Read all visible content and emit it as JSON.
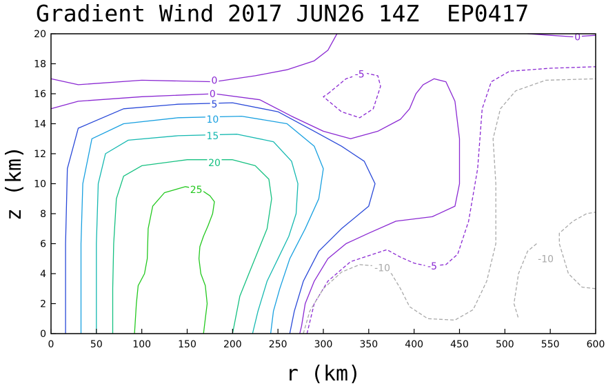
{
  "chart_data": {
    "type": "contour",
    "title": "Gradient Wind 2017 JUN26 14Z  EP0417",
    "xlabel": "r (km)",
    "ylabel": "z (km)",
    "xlim": [
      0,
      600
    ],
    "ylim": [
      0,
      20
    ],
    "x_ticks": [
      "0",
      "50",
      "100",
      "150",
      "200",
      "250",
      "300",
      "350",
      "400",
      "450",
      "500",
      "550",
      "600"
    ],
    "y_ticks": [
      "0",
      "2",
      "4",
      "6",
      "8",
      "10",
      "12",
      "14",
      "16",
      "18",
      "20"
    ],
    "grid": false,
    "contours": [
      {
        "level": "25",
        "color": "#22c81e",
        "dashed": false,
        "labels": [
          {
            "x": 160,
            "y": 9.6
          }
        ],
        "points": [
          [
            92,
            0
          ],
          [
            94,
            2
          ],
          [
            96,
            3.2
          ],
          [
            103,
            4
          ],
          [
            106,
            5
          ],
          [
            107,
            7
          ],
          [
            112,
            8.5
          ],
          [
            125,
            9.4
          ],
          [
            148,
            9.8
          ],
          [
            165,
            9.6
          ],
          [
            175,
            9.2
          ],
          [
            180,
            8.8
          ],
          [
            178,
            8
          ],
          [
            173,
            7.2
          ],
          [
            168,
            6.5
          ],
          [
            164,
            5.8
          ],
          [
            163,
            5
          ],
          [
            165,
            4
          ],
          [
            170,
            3.2
          ],
          [
            172,
            2
          ],
          [
            170,
            1
          ],
          [
            168,
            0
          ]
        ]
      },
      {
        "level": "20",
        "color": "#14c080",
        "dashed": false,
        "labels": [
          {
            "x": 180,
            "y": 11.4
          }
        ],
        "points": [
          [
            68,
            0
          ],
          [
            68,
            3
          ],
          [
            69,
            6
          ],
          [
            72,
            9
          ],
          [
            80,
            10.5
          ],
          [
            100,
            11.2
          ],
          [
            150,
            11.6
          ],
          [
            200,
            11.6
          ],
          [
            225,
            11.2
          ],
          [
            240,
            10.3
          ],
          [
            243,
            9
          ],
          [
            238,
            7
          ],
          [
            228,
            5.5
          ],
          [
            218,
            4
          ],
          [
            208,
            2.5
          ],
          [
            200,
            0
          ]
        ]
      },
      {
        "level": "15",
        "color": "#14b8b0",
        "dashed": false,
        "labels": [
          {
            "x": 178,
            "y": 13.2
          }
        ],
        "points": [
          [
            50,
            0
          ],
          [
            50,
            6
          ],
          [
            52,
            10
          ],
          [
            60,
            12
          ],
          [
            85,
            12.9
          ],
          [
            140,
            13.2
          ],
          [
            205,
            13.3
          ],
          [
            245,
            12.8
          ],
          [
            265,
            11.5
          ],
          [
            272,
            10
          ],
          [
            270,
            8
          ],
          [
            262,
            6.5
          ],
          [
            250,
            5
          ],
          [
            238,
            3.5
          ],
          [
            228,
            1.5
          ],
          [
            222,
            0
          ]
        ]
      },
      {
        "level": "10",
        "color": "#18a0e0",
        "dashed": false,
        "labels": [
          {
            "x": 178,
            "y": 14.3
          }
        ],
        "points": [
          [
            33,
            0
          ],
          [
            33,
            6
          ],
          [
            35,
            10
          ],
          [
            45,
            13
          ],
          [
            80,
            14
          ],
          [
            140,
            14.4
          ],
          [
            210,
            14.5
          ],
          [
            260,
            14
          ],
          [
            290,
            12.5
          ],
          [
            300,
            11
          ],
          [
            295,
            9
          ],
          [
            280,
            7
          ],
          [
            263,
            5
          ],
          [
            252,
            3
          ],
          [
            245,
            1.5
          ],
          [
            242,
            0
          ]
        ]
      },
      {
        "level": "5",
        "color": "#2848d8",
        "dashed": false,
        "labels": [
          {
            "x": 180,
            "y": 15.3
          }
        ],
        "points": [
          [
            16,
            0
          ],
          [
            16,
            6
          ],
          [
            18,
            11
          ],
          [
            30,
            13.7
          ],
          [
            80,
            15
          ],
          [
            140,
            15.3
          ],
          [
            200,
            15.4
          ],
          [
            250,
            14.8
          ],
          [
            290,
            13.5
          ],
          [
            320,
            12.5
          ],
          [
            345,
            11.5
          ],
          [
            357,
            10
          ],
          [
            350,
            8.5
          ],
          [
            320,
            7
          ],
          [
            295,
            5.5
          ],
          [
            278,
            3.5
          ],
          [
            268,
            1.5
          ],
          [
            263,
            0
          ]
        ]
      },
      {
        "level": "0",
        "color": "#8a28d2",
        "dashed": false,
        "labels": [
          {
            "x": 178,
            "y": 16.0
          }
        ],
        "points": [
          [
            0,
            15
          ],
          [
            30,
            15.5
          ],
          [
            100,
            15.8
          ],
          [
            180,
            16
          ],
          [
            230,
            15.6
          ],
          [
            265,
            14.5
          ],
          [
            300,
            13.5
          ],
          [
            330,
            13
          ],
          [
            360,
            13.5
          ],
          [
            385,
            14.3
          ],
          [
            395,
            15
          ],
          [
            402,
            16
          ],
          [
            410,
            16.6
          ],
          [
            422,
            17
          ],
          [
            435,
            16.8
          ],
          [
            445,
            15.5
          ],
          [
            450,
            13
          ],
          [
            450,
            10
          ],
          [
            445,
            8.5
          ],
          [
            420,
            7.8
          ],
          [
            380,
            7.5
          ],
          [
            350,
            6.7
          ],
          [
            325,
            6
          ],
          [
            305,
            5
          ],
          [
            290,
            3.5
          ],
          [
            280,
            2
          ],
          [
            276,
            0.5
          ],
          [
            274,
            0
          ]
        ]
      },
      {
        "level": "0",
        "color": "#8a28d2",
        "dashed": false,
        "labels": [
          {
            "x": 180,
            "y": 16.9
          }
        ],
        "points": [
          [
            0,
            17
          ],
          [
            30,
            16.6
          ],
          [
            100,
            16.9
          ],
          [
            180,
            16.8
          ],
          [
            225,
            17.2
          ],
          [
            260,
            17.6
          ],
          [
            290,
            18.2
          ],
          [
            305,
            18.9
          ],
          [
            315,
            20
          ]
        ]
      },
      {
        "level": "0",
        "color": "#8a28d2",
        "dashed": false,
        "labels": [
          {
            "x": 580,
            "y": 19.8
          }
        ],
        "points": [
          [
            525,
            20
          ],
          [
            550,
            19.9
          ],
          [
            575,
            19.8
          ],
          [
            600,
            19.9
          ]
        ]
      },
      {
        "level": "-5",
        "color": "#8a28d2",
        "dashed": true,
        "labels": [
          {
            "x": 340,
            "y": 17.3
          }
        ],
        "points": [
          [
            305,
            16
          ],
          [
            325,
            17
          ],
          [
            345,
            17.4
          ],
          [
            360,
            17.2
          ],
          [
            363,
            16.5
          ],
          [
            355,
            15
          ],
          [
            340,
            14.4
          ],
          [
            320,
            14.8
          ],
          [
            300,
            15.8
          ],
          [
            305,
            16
          ]
        ]
      },
      {
        "level": "-5",
        "color": "#8a28d2",
        "dashed": true,
        "labels": [
          {
            "x": 420,
            "y": 4.5
          }
        ],
        "points": [
          [
            282,
            0
          ],
          [
            290,
            2
          ],
          [
            305,
            3.5
          ],
          [
            330,
            4.8
          ],
          [
            370,
            5.6
          ],
          [
            385,
            5.1
          ],
          [
            400,
            4.7
          ],
          [
            415,
            4.5
          ],
          [
            435,
            4.6
          ],
          [
            448,
            5.3
          ],
          [
            460,
            7.5
          ],
          [
            470,
            11
          ],
          [
            475,
            15
          ],
          [
            485,
            16.8
          ],
          [
            505,
            17.5
          ],
          [
            550,
            17.7
          ],
          [
            600,
            17.8
          ]
        ]
      },
      {
        "level": "-10",
        "color": "#a8a8a8",
        "dashed": true,
        "labels": [
          {
            "x": 365,
            "y": 4.4
          }
        ],
        "points": [
          [
            278,
            0
          ],
          [
            285,
            1.5
          ],
          [
            300,
            3
          ],
          [
            320,
            4.1
          ],
          [
            340,
            4.6
          ],
          [
            360,
            4.5
          ],
          [
            375,
            4
          ],
          [
            385,
            3
          ],
          [
            395,
            1.8
          ],
          [
            415,
            1
          ],
          [
            445,
            0.9
          ],
          [
            465,
            1.6
          ],
          [
            480,
            3.5
          ],
          [
            490,
            6
          ],
          [
            490,
            10
          ],
          [
            487,
            13
          ],
          [
            495,
            15
          ],
          [
            512,
            16.2
          ],
          [
            545,
            16.9
          ],
          [
            600,
            17
          ]
        ]
      },
      {
        "level": "-10",
        "color": "#a8a8a8",
        "dashed": true,
        "labels": [
          {
            "x": 545,
            "y": 5.0
          }
        ],
        "points": [
          [
            600,
            3
          ],
          [
            585,
            3.1
          ],
          [
            570,
            4
          ],
          [
            560,
            6
          ],
          [
            560,
            6.7
          ],
          [
            575,
            7.5
          ],
          [
            590,
            8
          ],
          [
            600,
            8.1
          ]
        ]
      },
      {
        "level": "-10",
        "color": "#a8a8a8",
        "dashed": true,
        "labels": [],
        "points": [
          [
            535,
            6
          ],
          [
            525,
            5.5
          ],
          [
            515,
            4
          ],
          [
            510,
            2
          ],
          [
            515,
            1
          ]
        ]
      }
    ]
  }
}
